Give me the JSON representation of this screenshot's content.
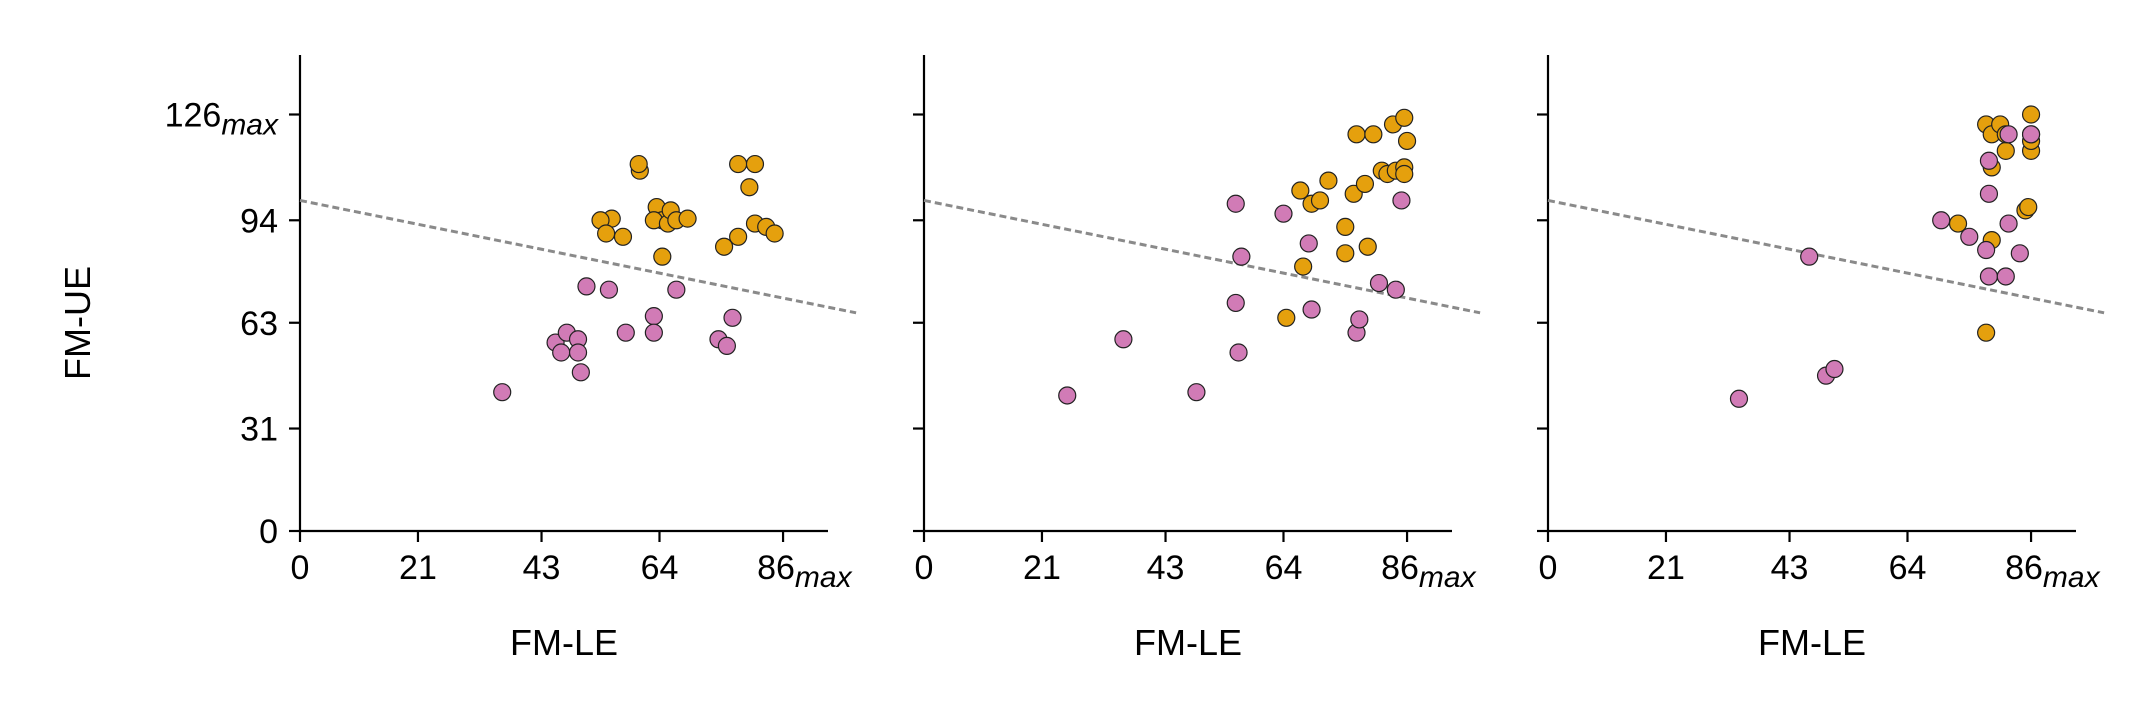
{
  "chart_data": [
    {
      "type": "scatter",
      "xlabel": "FM-LE",
      "ylabel": "FM-UE",
      "xlim": [
        0,
        94
      ],
      "ylim": [
        0,
        144
      ],
      "xticks": [
        {
          "value": 0,
          "label": "0"
        },
        {
          "value": 21,
          "label": "21"
        },
        {
          "value": 43,
          "label": "43"
        },
        {
          "value": 64,
          "label": "64"
        },
        {
          "value": 86,
          "label": "86",
          "sub": "max"
        }
      ],
      "yticks": [
        {
          "value": 0,
          "label": "0"
        },
        {
          "value": 31,
          "label": "31"
        },
        {
          "value": 63,
          "label": "63"
        },
        {
          "value": 94,
          "label": "94"
        },
        {
          "value": 126,
          "label": "126",
          "sub": "max"
        }
      ],
      "show_ytick_labels": true,
      "reference_line": {
        "x": [
          0,
          99
        ],
        "y": [
          100,
          66
        ]
      },
      "series": [
        {
          "color": "#e5a00d",
          "points": [
            [
              55.5,
              94.5
            ],
            [
              60.5,
              109
            ],
            [
              60.3,
              111
            ],
            [
              53.5,
              94
            ],
            [
              54.5,
              90
            ],
            [
              57.5,
              89
            ],
            [
              63.5,
              98
            ],
            [
              64.5,
              94
            ],
            [
              63,
              94
            ],
            [
              64.5,
              83
            ],
            [
              65.5,
              93
            ],
            [
              66,
              97
            ],
            [
              67,
              94
            ],
            [
              69,
              94.5
            ],
            [
              75.5,
              86
            ],
            [
              78,
              111
            ],
            [
              78,
              89
            ],
            [
              80,
              104
            ],
            [
              81,
              111
            ],
            [
              81,
              93
            ],
            [
              83,
              92
            ],
            [
              84.5,
              90
            ]
          ]
        },
        {
          "color": "#d17bb6",
          "points": [
            [
              36,
              42
            ],
            [
              45.5,
              57
            ],
            [
              46.5,
              54
            ],
            [
              47.5,
              60
            ],
            [
              49.5,
              58
            ],
            [
              49.5,
              54
            ],
            [
              50,
              48
            ],
            [
              51,
              74
            ],
            [
              55,
              73
            ],
            [
              58,
              60
            ],
            [
              63,
              65
            ],
            [
              63,
              60
            ],
            [
              67,
              73
            ],
            [
              74.5,
              58
            ],
            [
              76,
              56
            ],
            [
              77,
              64.5
            ]
          ]
        }
      ]
    },
    {
      "type": "scatter",
      "xlabel": "FM-LE",
      "ylabel": "",
      "xlim": [
        0,
        94
      ],
      "ylim": [
        0,
        144
      ],
      "xticks": [
        {
          "value": 0,
          "label": "0"
        },
        {
          "value": 21,
          "label": "21"
        },
        {
          "value": 43,
          "label": "43"
        },
        {
          "value": 64,
          "label": "64"
        },
        {
          "value": 86,
          "label": "86",
          "sub": "max"
        }
      ],
      "yticks": [
        {
          "value": 0
        },
        {
          "value": 31
        },
        {
          "value": 63
        },
        {
          "value": 94
        },
        {
          "value": 126
        }
      ],
      "show_ytick_labels": false,
      "reference_line": {
        "x": [
          0,
          99
        ],
        "y": [
          100,
          66
        ]
      },
      "series": [
        {
          "color": "#e5a00d",
          "points": [
            [
              64.5,
              64.5
            ],
            [
              67,
              103
            ],
            [
              67.5,
              80
            ],
            [
              69,
              99
            ],
            [
              70.5,
              100
            ],
            [
              72,
              106
            ],
            [
              75,
              92
            ],
            [
              75,
              84
            ],
            [
              76.5,
              102
            ],
            [
              77,
              120
            ],
            [
              78.5,
              105
            ],
            [
              79,
              86
            ],
            [
              80,
              120
            ],
            [
              81.5,
              109
            ],
            [
              82.5,
              108
            ],
            [
              83.5,
              123
            ],
            [
              84,
              109
            ],
            [
              85.5,
              110
            ],
            [
              85.5,
              125
            ],
            [
              85.5,
              108
            ],
            [
              86,
              118
            ]
          ]
        },
        {
          "color": "#d17bb6",
          "points": [
            [
              25.5,
              41
            ],
            [
              35.5,
              58
            ],
            [
              48.5,
              42
            ],
            [
              55.5,
              99
            ],
            [
              55.5,
              69
            ],
            [
              56,
              54
            ],
            [
              56.5,
              83
            ],
            [
              64,
              96
            ],
            [
              68.5,
              87
            ],
            [
              69,
              67
            ],
            [
              77,
              60
            ],
            [
              77.5,
              64
            ],
            [
              81,
              75
            ],
            [
              84,
              73
            ],
            [
              85,
              100
            ]
          ]
        }
      ]
    },
    {
      "type": "scatter",
      "xlabel": "FM-LE",
      "ylabel": "",
      "xlim": [
        0,
        94
      ],
      "ylim": [
        0,
        144
      ],
      "xticks": [
        {
          "value": 0,
          "label": "0"
        },
        {
          "value": 21,
          "label": "21"
        },
        {
          "value": 43,
          "label": "43"
        },
        {
          "value": 64,
          "label": "64"
        },
        {
          "value": 86,
          "label": "86",
          "sub": "max"
        }
      ],
      "yticks": [
        {
          "value": 0
        },
        {
          "value": 31
        },
        {
          "value": 63
        },
        {
          "value": 94
        },
        {
          "value": 126
        }
      ],
      "show_ytick_labels": false,
      "reference_line": {
        "x": [
          0,
          99
        ],
        "y": [
          100,
          66
        ]
      },
      "series": [
        {
          "color": "#e5a00d",
          "points": [
            [
              73,
              93
            ],
            [
              78,
              123
            ],
            [
              78,
              60
            ],
            [
              79,
              120
            ],
            [
              79,
              110
            ],
            [
              79,
              88
            ],
            [
              80.5,
              123
            ],
            [
              81.5,
              115
            ],
            [
              81.5,
              120
            ],
            [
              85,
              97
            ],
            [
              85.5,
              98
            ],
            [
              86,
              126
            ],
            [
              86,
              115
            ],
            [
              86,
              118
            ],
            [
              86,
              120
            ]
          ]
        },
        {
          "color": "#d17bb6",
          "points": [
            [
              34,
              40
            ],
            [
              46.5,
              83
            ],
            [
              49.5,
              47
            ],
            [
              51,
              49
            ],
            [
              70,
              94
            ],
            [
              75,
              89
            ],
            [
              78,
              85
            ],
            [
              78.5,
              77
            ],
            [
              78.5,
              102
            ],
            [
              78.5,
              112
            ],
            [
              81.5,
              77
            ],
            [
              82,
              93
            ],
            [
              82,
              120
            ],
            [
              84,
              84
            ],
            [
              86,
              120
            ]
          ]
        }
      ]
    }
  ]
}
